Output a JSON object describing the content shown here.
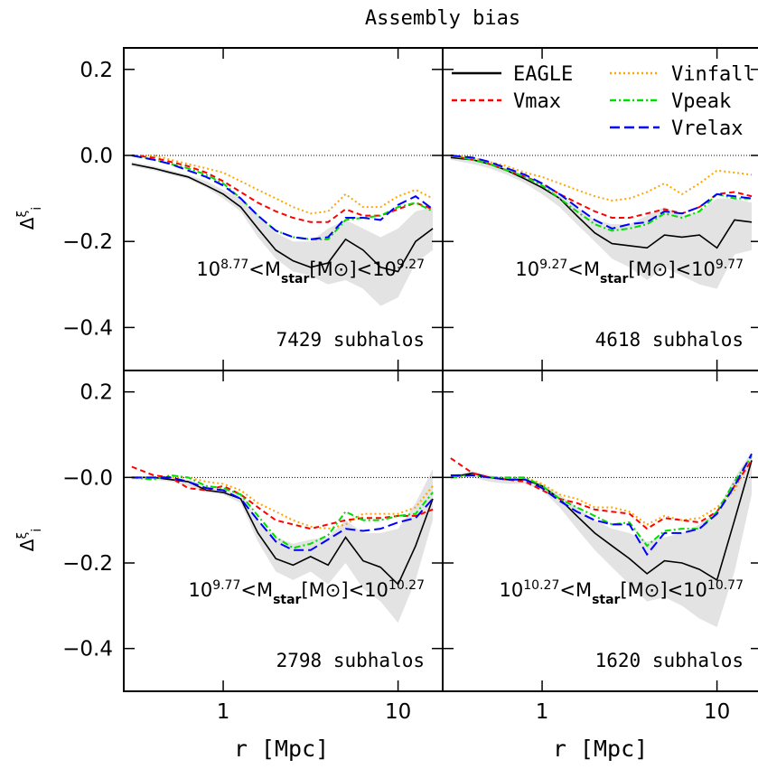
{
  "title": "Assembly bias",
  "chart_data": [
    {
      "type": "line",
      "xscale": "log",
      "xlim": [
        0.27,
        18
      ],
      "ylim": [
        -0.5,
        0.25
      ],
      "xticks": [
        1,
        10
      ],
      "yticks": [
        {
          "value": -0.4,
          "label": "−0.4"
        },
        {
          "value": -0.2,
          "label": "−0.2"
        },
        {
          "value": 0,
          "label": "0.0"
        },
        {
          "value": 0.2,
          "label": "0.2"
        }
      ],
      "ylabel": [
        "Δ",
        "ξ",
        "i"
      ],
      "hline": 0,
      "mass_label": [
        "10",
        "8.77",
        "<M",
        "star",
        "[M",
        "⊙",
        "]<10",
        "9.27"
      ],
      "count_label": "7429 subhalos",
      "x": [
        0.3,
        0.4,
        0.5,
        0.63,
        0.8,
        1.0,
        1.26,
        1.58,
        2.0,
        2.51,
        3.16,
        3.98,
        5.01,
        6.31,
        7.94,
        10.0,
        12.6,
        15.8
      ],
      "band": {
        "color": "#e3e3e3",
        "lower": [
          -0.025,
          -0.035,
          -0.045,
          -0.055,
          -0.075,
          -0.1,
          -0.13,
          -0.19,
          -0.24,
          -0.27,
          -0.28,
          -0.3,
          -0.29,
          -0.31,
          -0.35,
          -0.33,
          -0.25,
          -0.22
        ],
        "upper": [
          -0.015,
          -0.025,
          -0.035,
          -0.045,
          -0.06,
          -0.08,
          -0.1,
          -0.14,
          -0.18,
          -0.2,
          -0.2,
          -0.17,
          -0.15,
          -0.17,
          -0.19,
          -0.17,
          -0.13,
          -0.12
        ]
      },
      "series": [
        {
          "color": "#000000",
          "dash": "solid",
          "values": [
            -0.02,
            -0.03,
            -0.04,
            -0.05,
            -0.07,
            -0.09,
            -0.12,
            -0.17,
            -0.22,
            -0.245,
            -0.26,
            -0.25,
            -0.195,
            -0.22,
            -0.26,
            -0.27,
            -0.2,
            -0.17
          ]
        },
        {
          "color": "#ffa500",
          "dash": "dotted",
          "values": [
            0,
            0,
            -0.01,
            -0.02,
            -0.03,
            -0.04,
            -0.06,
            -0.08,
            -0.1,
            -0.12,
            -0.135,
            -0.13,
            -0.09,
            -0.12,
            -0.12,
            -0.095,
            -0.08,
            -0.1
          ]
        },
        {
          "color": "#ff0000",
          "dash": "dashed",
          "values": [
            0,
            -0.005,
            -0.015,
            -0.025,
            -0.04,
            -0.06,
            -0.085,
            -0.11,
            -0.13,
            -0.145,
            -0.155,
            -0.155,
            -0.125,
            -0.14,
            -0.14,
            -0.125,
            -0.11,
            -0.125
          ]
        },
        {
          "color": "#00dd00",
          "dash": "dashdot",
          "values": [
            0,
            -0.01,
            -0.02,
            -0.03,
            -0.045,
            -0.065,
            -0.1,
            -0.14,
            -0.175,
            -0.19,
            -0.195,
            -0.195,
            -0.15,
            -0.145,
            -0.14,
            -0.12,
            -0.11,
            -0.13
          ]
        },
        {
          "color": "#0000ff",
          "dash": "longdash",
          "values": [
            0,
            -0.01,
            -0.02,
            -0.035,
            -0.05,
            -0.07,
            -0.1,
            -0.14,
            -0.175,
            -0.19,
            -0.195,
            -0.19,
            -0.145,
            -0.145,
            -0.15,
            -0.115,
            -0.095,
            -0.125
          ]
        }
      ]
    },
    {
      "type": "line",
      "xscale": "log",
      "xlim": [
        0.27,
        18
      ],
      "ylim": [
        -0.5,
        0.25
      ],
      "xticks": [
        1,
        10
      ],
      "yticks": [
        -0.4,
        -0.2,
        0,
        0.2
      ],
      "hline": 0,
      "legend": "upper right",
      "mass_label": [
        "10",
        "9.27",
        "<M",
        "star",
        "[M",
        "⊙",
        "]<10",
        "9.77"
      ],
      "count_label": "4618 subhalos",
      "x": [
        0.3,
        0.4,
        0.5,
        0.63,
        0.8,
        1.0,
        1.26,
        1.58,
        2.0,
        2.51,
        3.16,
        3.98,
        5.01,
        6.31,
        7.94,
        10.0,
        12.6,
        15.8
      ],
      "band": {
        "color": "#e3e3e3",
        "lower": [
          -0.01,
          -0.02,
          -0.03,
          -0.045,
          -0.065,
          -0.09,
          -0.12,
          -0.16,
          -0.2,
          -0.24,
          -0.26,
          -0.29,
          -0.26,
          -0.28,
          -0.3,
          -0.31,
          -0.23,
          -0.22
        ],
        "upper": [
          0,
          -0.005,
          -0.015,
          -0.03,
          -0.045,
          -0.065,
          -0.09,
          -0.12,
          -0.15,
          -0.16,
          -0.16,
          -0.14,
          -0.12,
          -0.14,
          -0.13,
          -0.1,
          -0.1,
          -0.11
        ]
      },
      "series": [
        {
          "name": "EAGLE",
          "color": "#000000",
          "dash": "solid",
          "values": [
            -0.005,
            -0.01,
            -0.02,
            -0.035,
            -0.055,
            -0.075,
            -0.1,
            -0.14,
            -0.18,
            -0.205,
            -0.21,
            -0.215,
            -0.185,
            -0.19,
            -0.185,
            -0.215,
            -0.15,
            -0.155
          ]
        },
        {
          "name": "Vinfall",
          "color": "#ffa500",
          "dash": "dotted",
          "values": [
            0,
            -0.005,
            -0.015,
            -0.025,
            -0.04,
            -0.05,
            -0.065,
            -0.08,
            -0.095,
            -0.105,
            -0.1,
            -0.085,
            -0.065,
            -0.09,
            -0.065,
            -0.035,
            -0.04,
            -0.045
          ]
        },
        {
          "name": "Vmax",
          "color": "#ff0000",
          "dash": "dashed",
          "values": [
            0,
            -0.01,
            -0.02,
            -0.035,
            -0.05,
            -0.065,
            -0.09,
            -0.11,
            -0.13,
            -0.145,
            -0.145,
            -0.135,
            -0.125,
            -0.135,
            -0.12,
            -0.09,
            -0.085,
            -0.095
          ]
        },
        {
          "name": "Vpeak",
          "color": "#00dd00",
          "dash": "dashdot",
          "values": [
            0,
            -0.01,
            -0.02,
            -0.035,
            -0.05,
            -0.07,
            -0.1,
            -0.13,
            -0.16,
            -0.175,
            -0.17,
            -0.16,
            -0.135,
            -0.145,
            -0.13,
            -0.09,
            -0.1,
            -0.1
          ]
        },
        {
          "name": "Vrelax",
          "color": "#0000ff",
          "dash": "longdash",
          "values": [
            0,
            -0.005,
            -0.015,
            -0.03,
            -0.045,
            -0.065,
            -0.09,
            -0.12,
            -0.15,
            -0.17,
            -0.16,
            -0.155,
            -0.13,
            -0.135,
            -0.12,
            -0.09,
            -0.095,
            -0.1
          ]
        }
      ]
    },
    {
      "type": "line",
      "xscale": "log",
      "xlim": [
        0.27,
        18
      ],
      "ylim": [
        -0.5,
        0.25
      ],
      "xticks": [
        1,
        10
      ],
      "yticks": [
        {
          "value": -0.4,
          "label": "−0.4"
        },
        {
          "value": -0.2,
          "label": "−0.2"
        },
        {
          "value": 0,
          "label": "−0.0"
        },
        {
          "value": 0.2,
          "label": "0.2"
        }
      ],
      "xlabel": "r [Mpc]",
      "ylabel": [
        "Δ",
        "ξ",
        "i"
      ],
      "hline": 0,
      "mass_label": [
        "10",
        "9.77",
        "<M",
        "star",
        "[M",
        "⊙",
        "]<10",
        "10.27"
      ],
      "count_label": "2798 subhalos",
      "x": [
        0.3,
        0.4,
        0.5,
        0.63,
        0.8,
        1.0,
        1.26,
        1.58,
        2.0,
        2.51,
        3.16,
        3.98,
        5.01,
        6.31,
        7.94,
        10.0,
        12.6,
        15.8
      ],
      "band": {
        "color": "#e3e3e3",
        "lower": [
          -0.005,
          -0.005,
          -0.01,
          -0.02,
          -0.035,
          -0.04,
          -0.06,
          -0.15,
          -0.22,
          -0.24,
          -0.22,
          -0.25,
          -0.2,
          -0.26,
          -0.29,
          -0.34,
          -0.24,
          -0.1
        ],
        "upper": [
          0,
          0,
          0,
          -0.005,
          -0.02,
          -0.03,
          -0.04,
          -0.1,
          -0.14,
          -0.155,
          -0.145,
          -0.14,
          -0.1,
          -0.13,
          -0.13,
          -0.12,
          -0.06,
          0.02
        ]
      },
      "series": [
        {
          "color": "#000000",
          "dash": "solid",
          "values": [
            0,
            0,
            -0.005,
            -0.01,
            -0.03,
            -0.035,
            -0.05,
            -0.13,
            -0.19,
            -0.205,
            -0.185,
            -0.205,
            -0.14,
            -0.195,
            -0.21,
            -0.25,
            -0.16,
            -0.05
          ]
        },
        {
          "color": "#ffa500",
          "dash": "dotted",
          "values": [
            0,
            0,
            0,
            0,
            -0.01,
            -0.015,
            -0.03,
            -0.06,
            -0.08,
            -0.1,
            -0.115,
            -0.12,
            -0.11,
            -0.085,
            -0.085,
            -0.085,
            -0.07,
            -0.02
          ]
        },
        {
          "color": "#ff0000",
          "dash": "dashed",
          "values": [
            0.025,
            0.005,
            0,
            -0.025,
            -0.03,
            -0.02,
            -0.04,
            -0.07,
            -0.1,
            -0.11,
            -0.12,
            -0.11,
            -0.1,
            -0.095,
            -0.095,
            -0.09,
            -0.09,
            -0.075
          ]
        },
        {
          "color": "#00dd00",
          "dash": "dashdot",
          "values": [
            0,
            -0.005,
            0.005,
            0,
            -0.02,
            -0.025,
            -0.04,
            -0.09,
            -0.14,
            -0.165,
            -0.155,
            -0.135,
            -0.08,
            -0.1,
            -0.1,
            -0.09,
            -0.085,
            -0.035
          ]
        },
        {
          "color": "#0000ff",
          "dash": "longdash",
          "values": [
            0,
            0,
            0,
            -0.01,
            -0.025,
            -0.03,
            -0.05,
            -0.1,
            -0.15,
            -0.17,
            -0.17,
            -0.145,
            -0.12,
            -0.125,
            -0.12,
            -0.105,
            -0.095,
            -0.05
          ]
        }
      ]
    },
    {
      "type": "line",
      "xscale": "log",
      "xlim": [
        0.27,
        18
      ],
      "ylim": [
        -0.5,
        0.25
      ],
      "xticks": [
        1,
        10
      ],
      "yticks": [
        -0.4,
        -0.2,
        0,
        0.2
      ],
      "xlabel": "r [Mpc]",
      "hline": 0,
      "mass_label": [
        "10",
        "10.27",
        "<M",
        "star",
        "[M",
        "⊙",
        "]<10",
        "10.77"
      ],
      "count_label": "1620 subhalos",
      "x": [
        0.3,
        0.4,
        0.5,
        0.63,
        0.8,
        1.0,
        1.26,
        1.58,
        2.0,
        2.51,
        3.16,
        3.98,
        5.01,
        6.31,
        7.94,
        10.0,
        12.6,
        15.8
      ],
      "band": {
        "color": "#e3e3e3",
        "lower": [
          -0.005,
          0,
          -0.01,
          -0.015,
          -0.015,
          -0.03,
          -0.07,
          -0.12,
          -0.17,
          -0.21,
          -0.25,
          -0.29,
          -0.28,
          -0.3,
          -0.33,
          -0.35,
          -0.22,
          -0.04
        ],
        "upper": [
          0.005,
          0.015,
          0.005,
          0,
          0,
          -0.015,
          -0.04,
          -0.07,
          -0.1,
          -0.12,
          -0.13,
          -0.15,
          -0.14,
          -0.13,
          -0.11,
          -0.08,
          0,
          0.06
        ]
      },
      "series": [
        {
          "color": "#000000",
          "dash": "solid",
          "values": [
            0,
            0.01,
            0,
            -0.005,
            -0.005,
            -0.02,
            -0.05,
            -0.09,
            -0.13,
            -0.16,
            -0.19,
            -0.225,
            -0.195,
            -0.2,
            -0.215,
            -0.24,
            -0.1,
            0.04
          ]
        },
        {
          "color": "#ffa500",
          "dash": "dotted",
          "values": [
            0,
            0.005,
            0,
            0,
            0,
            -0.015,
            -0.04,
            -0.05,
            -0.07,
            -0.07,
            -0.08,
            -0.11,
            -0.09,
            -0.1,
            -0.095,
            -0.07,
            -0.03,
            0.05
          ]
        },
        {
          "color": "#ff0000",
          "dash": "dashed",
          "values": [
            0.045,
            0.01,
            0,
            -0.005,
            -0.01,
            -0.03,
            -0.05,
            -0.06,
            -0.075,
            -0.08,
            -0.085,
            -0.12,
            -0.095,
            -0.1,
            -0.105,
            -0.08,
            -0.02,
            0.04
          ]
        },
        {
          "color": "#00dd00",
          "dash": "dashdot",
          "values": [
            0,
            0.005,
            0,
            0,
            0,
            -0.02,
            -0.05,
            -0.07,
            -0.09,
            -0.11,
            -0.105,
            -0.16,
            -0.125,
            -0.12,
            -0.12,
            -0.08,
            -0.01,
            0.05
          ]
        },
        {
          "color": "#0000ff",
          "dash": "longdash",
          "values": [
            0.005,
            0.005,
            0,
            -0.005,
            -0.005,
            -0.025,
            -0.055,
            -0.08,
            -0.1,
            -0.11,
            -0.11,
            -0.18,
            -0.13,
            -0.13,
            -0.12,
            -0.085,
            -0.02,
            0.055
          ]
        }
      ]
    }
  ]
}
